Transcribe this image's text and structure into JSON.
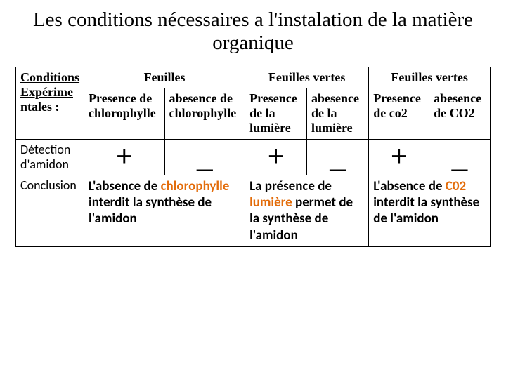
{
  "title": "Les conditions nécessaires a l'instalation de la matière organique",
  "header": {
    "col0_line1": "Conditions",
    "col0_line2": "Expérime",
    "col0_line3": "ntales :",
    "col1": "Feuilles",
    "col2": "Feuilles  vertes",
    "col3": "Feuilles  vertes"
  },
  "sub": {
    "a1": "Presence de chlorophylle",
    "a2": "abesence de chlorophylle",
    "b1": "Presence de la lumière",
    "b2": "abesence de  la lumière",
    "c1": "Presence de co2",
    "c2": "abesence de CO2"
  },
  "rowlabels": {
    "detection": "Détection d'amidon",
    "conclusion": "Conclusion"
  },
  "signs": {
    "p": "+",
    "m": "_"
  },
  "concl": {
    "a_pre": "L'absence de ",
    "a_orange": "chlorophylle",
    "a_post": " interdit la synthèse de l'amidon",
    "b_pre": "La présence de ",
    "b_orange": "lumière",
    "b_post": " permet de la synthèse de l'amidon",
    "c_pre": "L'absence de ",
    "c_orange": "C02",
    "c_post": " interdit la synthèse de l'amidon"
  },
  "colors": {
    "text": "#000000",
    "accent": "#e36c0a",
    "border": "#000000",
    "background": "#ffffff"
  }
}
